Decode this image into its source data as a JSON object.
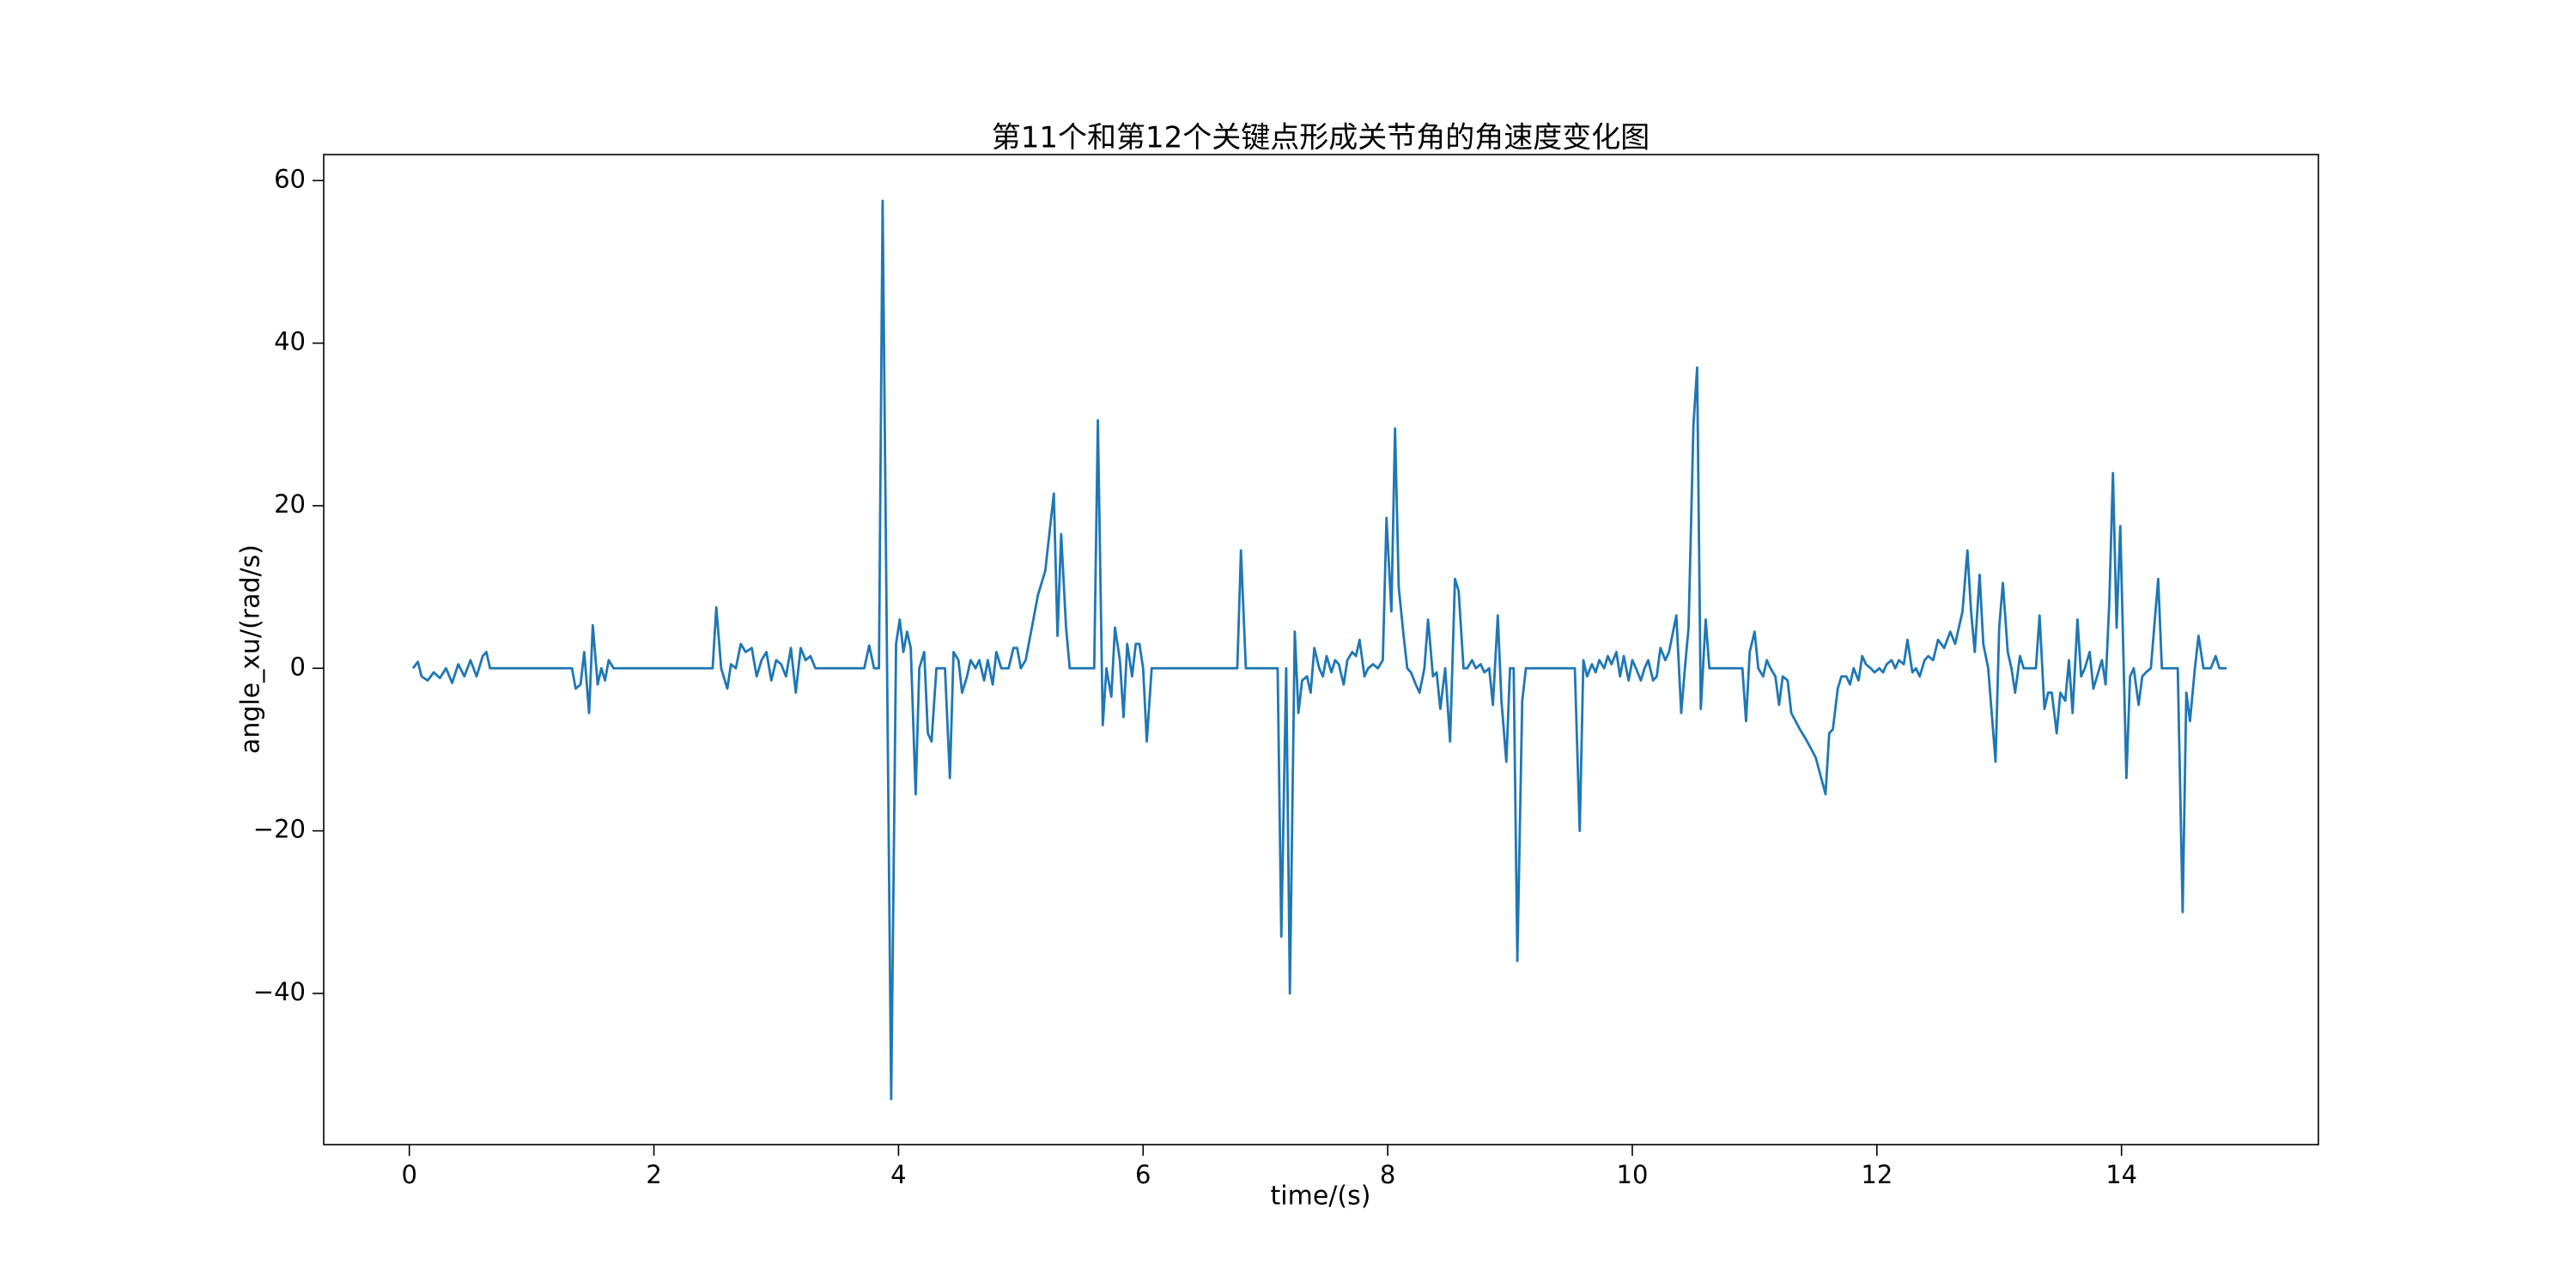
{
  "chart_data": {
    "type": "line",
    "title": "第11个和第12个关键点形成关节角的角速度变化图",
    "x_label": "time/(s)",
    "y_label": "angle_xu/(rad/s)",
    "color": "#1f77b4",
    "xlim": [
      -0.7,
      15.61
    ],
    "ylim": [
      -58.6,
      63.2
    ],
    "xticks": [
      0,
      2,
      4,
      6,
      8,
      10,
      12,
      14
    ],
    "yticks": [
      {
        "value": -40,
        "label": "−40"
      },
      {
        "value": -20,
        "label": "−20"
      },
      0,
      20,
      40,
      60
    ],
    "grid": false,
    "x": [
      0.03,
      0.07,
      0.1,
      0.15,
      0.2,
      0.25,
      0.3,
      0.35,
      0.4,
      0.45,
      0.5,
      0.55,
      0.6,
      0.63,
      0.66,
      1.33,
      1.36,
      1.4,
      1.43,
      1.47,
      1.5,
      1.54,
      1.57,
      1.6,
      1.63,
      1.67,
      2.48,
      2.51,
      2.55,
      2.6,
      2.63,
      2.67,
      2.71,
      2.75,
      2.8,
      2.84,
      2.88,
      2.92,
      2.96,
      3.0,
      3.04,
      3.08,
      3.12,
      3.16,
      3.2,
      3.24,
      3.28,
      3.32,
      3.72,
      3.76,
      3.8,
      3.84,
      3.87,
      3.94,
      3.98,
      4.01,
      4.04,
      4.07,
      4.1,
      4.14,
      4.17,
      4.21,
      4.24,
      4.27,
      4.31,
      4.38,
      4.42,
      4.45,
      4.49,
      4.52,
      4.56,
      4.59,
      4.63,
      4.66,
      4.7,
      4.73,
      4.77,
      4.8,
      4.84,
      4.9,
      4.94,
      4.97,
      5.0,
      5.04,
      5.14,
      5.2,
      5.27,
      5.3,
      5.33,
      5.37,
      5.4,
      5.6,
      5.63,
      5.67,
      5.7,
      5.74,
      5.77,
      5.81,
      5.84,
      5.87,
      5.91,
      5.94,
      5.97,
      6.0,
      6.03,
      6.07,
      6.77,
      6.8,
      6.84,
      7.1,
      7.13,
      7.17,
      7.2,
      7.24,
      7.27,
      7.3,
      7.34,
      7.37,
      7.4,
      7.44,
      7.47,
      7.5,
      7.54,
      7.57,
      7.6,
      7.64,
      7.67,
      7.71,
      7.74,
      7.77,
      7.81,
      7.84,
      7.88,
      7.92,
      7.96,
      7.99,
      8.03,
      8.06,
      8.09,
      8.13,
      8.16,
      8.19,
      8.23,
      8.26,
      8.3,
      8.33,
      8.37,
      8.4,
      8.43,
      8.47,
      8.51,
      8.55,
      8.58,
      8.62,
      8.65,
      8.69,
      8.72,
      8.76,
      8.79,
      8.83,
      8.86,
      8.9,
      8.93,
      8.97,
      9.0,
      9.03,
      9.06,
      9.1,
      9.13,
      9.53,
      9.57,
      9.6,
      9.63,
      9.67,
      9.7,
      9.73,
      9.77,
      9.8,
      9.83,
      9.87,
      9.9,
      9.93,
      9.97,
      10.0,
      10.03,
      10.07,
      10.1,
      10.13,
      10.17,
      10.2,
      10.23,
      10.27,
      10.3,
      10.36,
      10.4,
      10.43,
      10.46,
      10.5,
      10.53,
      10.56,
      10.6,
      10.63,
      10.9,
      10.93,
      10.96,
      11.0,
      11.03,
      11.07,
      11.1,
      11.13,
      11.17,
      11.2,
      11.23,
      11.27,
      11.3,
      11.37,
      11.43,
      11.5,
      11.58,
      11.61,
      11.64,
      11.68,
      11.71,
      11.75,
      11.78,
      11.81,
      11.85,
      11.88,
      11.91,
      11.95,
      11.98,
      12.02,
      12.05,
      12.08,
      12.12,
      12.15,
      12.18,
      12.22,
      12.25,
      12.29,
      12.32,
      12.35,
      12.39,
      12.42,
      12.46,
      12.5,
      12.55,
      12.6,
      12.64,
      12.7,
      12.74,
      12.77,
      12.8,
      12.84,
      12.87,
      12.91,
      12.97,
      13.0,
      13.03,
      13.07,
      13.1,
      13.13,
      13.17,
      13.2,
      13.3,
      13.33,
      13.37,
      13.4,
      13.43,
      13.47,
      13.5,
      13.54,
      13.57,
      13.6,
      13.64,
      13.67,
      13.7,
      13.74,
      13.77,
      13.8,
      13.84,
      13.87,
      13.9,
      13.93,
      13.96,
      13.99,
      14.04,
      14.07,
      14.1,
      14.14,
      14.17,
      14.2,
      14.24,
      14.3,
      14.33,
      14.46,
      14.5,
      14.53,
      14.56,
      14.6,
      14.63,
      14.67,
      14.73,
      14.77,
      14.8,
      14.86
    ],
    "values": [
      0,
      0.8,
      -1,
      -1.5,
      -0.5,
      -1.2,
      0,
      -1.8,
      0.5,
      -1,
      1,
      -1,
      1.5,
      2,
      0,
      0,
      -2.5,
      -2,
      2,
      -5.5,
      5.3,
      -2,
      0,
      -1.5,
      1,
      0,
      0,
      7.5,
      0,
      -2.5,
      0.5,
      0,
      3,
      2,
      2.5,
      -1,
      1,
      2,
      -1.5,
      1,
      0.5,
      -1,
      2.5,
      -3,
      2.5,
      1,
      1.5,
      0,
      0,
      2.8,
      0,
      0,
      57.5,
      -53,
      3,
      6,
      2,
      4.5,
      2.5,
      -15.5,
      0,
      2,
      -8,
      -9,
      0,
      0,
      -13.5,
      2,
      1,
      -3,
      -1,
      1,
      0,
      1,
      -1.5,
      1,
      -2,
      2,
      0,
      0,
      2.5,
      2.5,
      0,
      1,
      9,
      12,
      21.5,
      4,
      16.5,
      5,
      0,
      0,
      30.5,
      -7,
      0,
      -3.5,
      5,
      1,
      -6,
      3,
      -1,
      3,
      3,
      0,
      -9,
      0,
      0,
      14.5,
      0,
      0,
      -33,
      0,
      -40,
      4.5,
      -5.5,
      -1.5,
      -1,
      -3,
      2.5,
      0,
      -1,
      1.5,
      -0.5,
      1,
      0.5,
      -2,
      1,
      2,
      1.5,
      3.5,
      -1,
      0,
      0.5,
      0,
      1,
      18.5,
      7,
      29.5,
      10,
      4,
      0,
      -0.5,
      -2,
      -3,
      0,
      6,
      -1,
      -0.5,
      -5,
      0,
      -9,
      11,
      9.5,
      0,
      0,
      1,
      0,
      0.5,
      -0.5,
      0,
      -4.5,
      6.5,
      -4,
      -11.5,
      0,
      0,
      -36,
      -4,
      0,
      0,
      -20,
      1,
      -1,
      0.5,
      -0.5,
      1,
      0,
      1.5,
      0.5,
      2,
      -1,
      1.5,
      -1.5,
      1,
      0,
      -1.5,
      0,
      1,
      -1.5,
      -1,
      2.5,
      1,
      2,
      6.5,
      -5.5,
      0,
      5,
      30,
      37,
      -5,
      6,
      0,
      0,
      -6.5,
      2,
      4.5,
      0,
      -1,
      1,
      0,
      -1,
      -4.5,
      -1,
      -1.5,
      -5.5,
      -7.5,
      -9,
      -11,
      -15.5,
      -8,
      -7.5,
      -2.5,
      -1,
      -1,
      -2,
      0,
      -1.5,
      1.5,
      0.5,
      0,
      -0.5,
      0,
      -0.5,
      0.5,
      1,
      0,
      1,
      0.5,
      3.5,
      -0.5,
      0,
      -1,
      1,
      1.5,
      1,
      3.5,
      2.5,
      4.5,
      3,
      7,
      14.5,
      7,
      2,
      11.5,
      3,
      0,
      -11.5,
      5,
      10.5,
      2,
      0,
      -3,
      1.5,
      0,
      0,
      6.5,
      -5,
      -3,
      -3,
      -8,
      -3,
      -4,
      1,
      -5.5,
      6,
      -1,
      0,
      2,
      -2.5,
      -1,
      1,
      -2,
      8,
      24,
      5,
      17.5,
      -13.5,
      -1,
      0,
      -4.5,
      -1,
      -0.5,
      0,
      11,
      0,
      0,
      -30,
      -3,
      -6.5,
      0,
      4,
      0,
      0,
      1.5,
      0,
      0
    ]
  }
}
